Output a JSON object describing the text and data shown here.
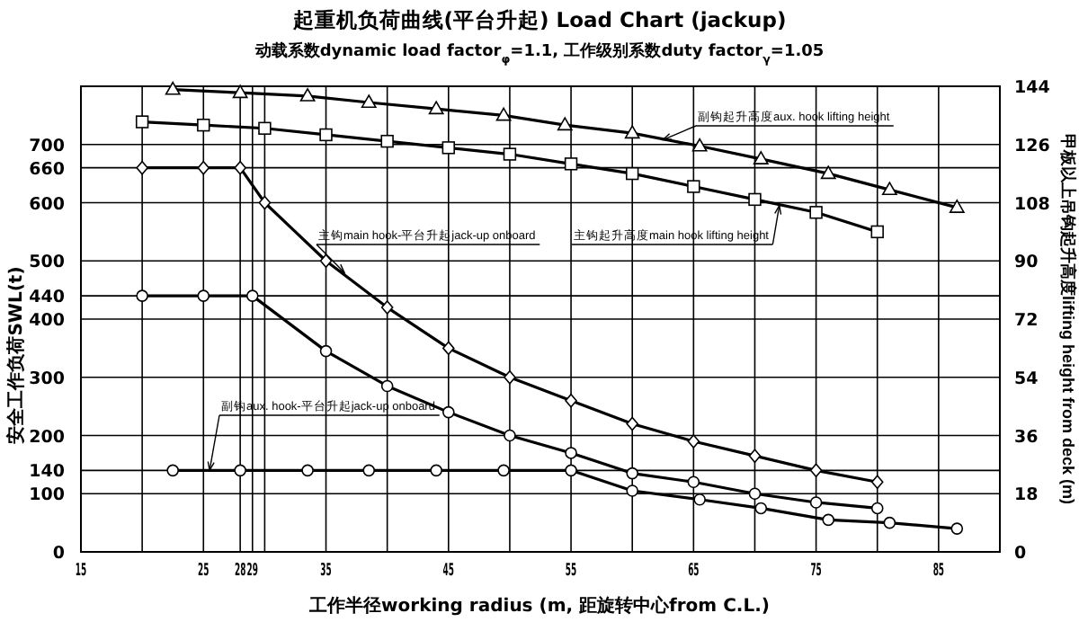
{
  "chart_data": {
    "type": "line",
    "title": "起重机负荷曲线(平台升起) Load Chart (jackup)",
    "subtitle": "动载系数dynamic load factor$_{φ}$=1.1, 工作级别系数duty factor$_{γ}$=1.05",
    "xlabel": "工作半径working radius (m, 距旋转中心from C.L.)",
    "ylabel": "安全工作负荷SWL(t)",
    "y2label": "甲板以上吊钩起升高度lifting height from deck (m)",
    "xlim": [
      15,
      90
    ],
    "ylim": [
      0,
      800
    ],
    "y2lim": [
      0,
      144
    ],
    "xticks": [
      15,
      {
        "value": 20,
        "label": null
      },
      25,
      28,
      29,
      {
        "value": 30,
        "label": null
      },
      35,
      {
        "value": 40,
        "label": null
      },
      45,
      {
        "value": 50,
        "label": null
      },
      55,
      {
        "value": 60,
        "label": null
      },
      65,
      {
        "value": 70,
        "label": null
      },
      75,
      {
        "value": 80,
        "label": null
      },
      85
    ],
    "yticks": [
      0,
      100,
      140,
      200,
      300,
      400,
      440,
      500,
      600,
      660,
      700,
      {
        "value": 800,
        "label": null
      }
    ],
    "y2ticks": [
      0,
      18,
      36,
      54,
      72,
      90,
      108,
      126,
      144
    ],
    "grid": true,
    "series": [
      {
        "color": "#000000",
        "marker": "diamond",
        "x": [
          20,
          25,
          28,
          30,
          35,
          40,
          45,
          50,
          55,
          60,
          65,
          70,
          75,
          80
        ],
        "values": [
          660,
          660,
          660,
          600,
          500,
          420,
          350,
          300,
          260,
          220,
          190,
          165,
          140,
          120
        ]
      },
      {
        "color": "#000000",
        "marker": "circle",
        "x": [
          20,
          25,
          29,
          35,
          40,
          45,
          50,
          55,
          60,
          65,
          70,
          75,
          80
        ],
        "values": [
          440,
          440,
          440,
          345,
          285,
          240,
          200,
          170,
          135,
          120,
          100,
          85,
          75
        ]
      },
      {
        "color": "#000000",
        "marker": "circle",
        "x": [
          22.5,
          28,
          33.5,
          38.5,
          44,
          49.5,
          55,
          60,
          65.5,
          70.5,
          76,
          81,
          86.5
        ],
        "values": [
          140,
          140,
          140,
          140,
          140,
          140,
          140,
          105,
          90,
          75,
          55,
          50,
          40
        ]
      },
      {
        "color": "#000000",
        "marker": "square",
        "axis": "y2",
        "x": [
          20,
          25,
          30,
          35,
          40,
          45,
          50,
          55,
          60,
          65,
          70,
          75,
          80
        ],
        "values": [
          133,
          132,
          131,
          129,
          127,
          125,
          123,
          120,
          117,
          113,
          109,
          105,
          99
        ]
      },
      {
        "color": "#000000",
        "marker": "triangle",
        "axis": "y2",
        "x": [
          22.5,
          28,
          33.5,
          38.5,
          44,
          49.5,
          54.5,
          60,
          65.5,
          70.5,
          76,
          81,
          86.5
        ],
        "values": [
          143,
          142,
          141,
          139,
          137,
          135,
          132,
          129.5,
          125.5,
          121.5,
          117,
          112,
          106.5
        ]
      }
    ],
    "annotations": [
      {
        "text": "主钩main hook-平台升起jack-up onboard",
        "x": 36.5,
        "y": 480
      },
      {
        "text": "副钩aux. hook-平台升起jack-up onboard",
        "x": 25.5,
        "y": 140
      },
      {
        "text": "主钩起升高度main hook lifting height",
        "x": 72,
        "y": 595
      },
      {
        "text": "副钩起升高度aux. hook lifting height",
        "x": 62.5,
        "y": 708
      }
    ]
  }
}
